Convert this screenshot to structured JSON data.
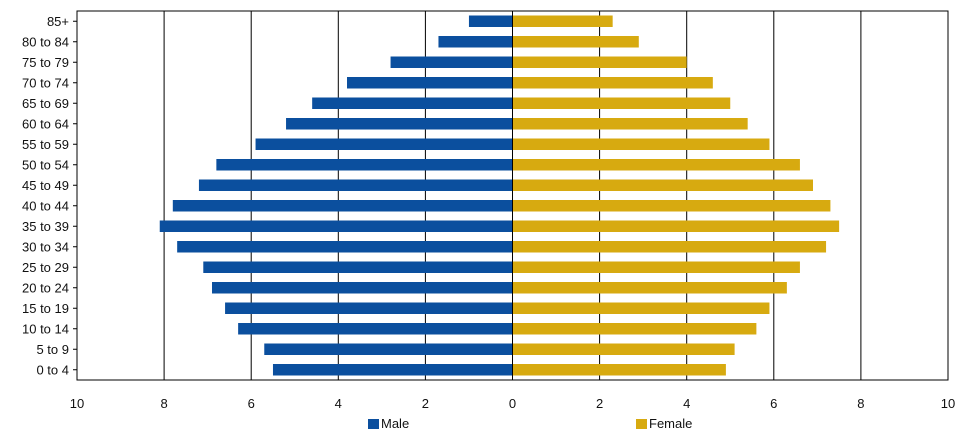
{
  "chart_data": {
    "type": "bar",
    "orientation": "horizontal",
    "subtype": "population-pyramid",
    "categories": [
      "85+",
      "80 to 84",
      "75 to 79",
      "70 to 74",
      "65 to 69",
      "60 to 64",
      "55 to 59",
      "50 to 54",
      "45 to 49",
      "40 to 44",
      "35 to 39",
      "30 to 34",
      "25 to 29",
      "20 to 24",
      "15 to 19",
      "10 to 14",
      "5 to 9",
      "0 to 4"
    ],
    "series": [
      {
        "name": "Male",
        "color": "#0b4f9e",
        "side": "left",
        "values": [
          1.0,
          1.7,
          2.8,
          3.8,
          4.6,
          5.2,
          5.9,
          6.8,
          7.2,
          7.8,
          8.1,
          7.7,
          7.1,
          6.9,
          6.6,
          6.3,
          5.7,
          5.5
        ]
      },
      {
        "name": "Female",
        "color": "#d7aa10",
        "side": "right",
        "values": [
          2.3,
          2.9,
          4.0,
          4.6,
          5.0,
          5.4,
          5.9,
          6.6,
          6.9,
          7.3,
          7.5,
          7.2,
          6.6,
          6.3,
          5.9,
          5.6,
          5.1,
          4.9
        ]
      }
    ],
    "x_ticks": [
      "10",
      "8",
      "6",
      "4",
      "2",
      "0",
      "2",
      "4",
      "6",
      "8",
      "10"
    ],
    "xlim": [
      -10,
      10
    ],
    "grid": "vertical lines at every 2 units",
    "legend_position": "bottom-center",
    "title": "",
    "xlabel": "",
    "ylabel": ""
  }
}
